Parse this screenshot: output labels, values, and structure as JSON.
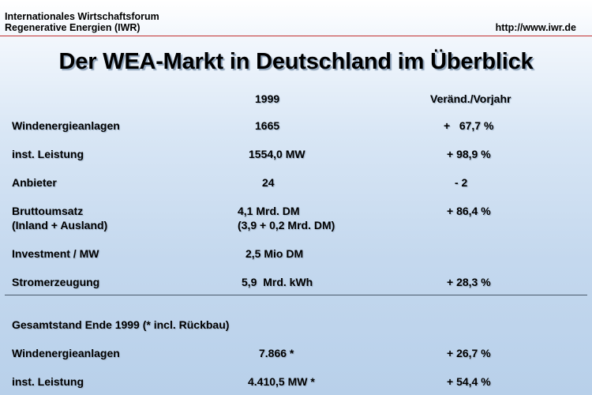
{
  "header": {
    "org_line1": "Internationales Wirtschaftsforum",
    "org_line2": "Regenerative Energien (IWR)",
    "url": "http://www.iwr.de"
  },
  "title": "Der WEA-Markt in Deutschland im Überblick",
  "columns": {
    "year": "1999",
    "change": "Veränd./Vorjahr"
  },
  "rows": [
    {
      "label": "Windenergieanlagen",
      "value": "1665",
      "change": "+   67,7 %"
    },
    {
      "label": "inst. Leistung",
      "value": "1554,0 MW",
      "change": "+ 98,9 %"
    },
    {
      "label": "Anbieter",
      "value": "24",
      "change": "- 2"
    },
    {
      "label": "Bruttoumsatz",
      "label2": "(Inland + Ausland)",
      "value": "4,1 Mrd. DM",
      "value2": "(3,9 + 0,2 Mrd. DM)",
      "change": "+ 86,4 %"
    },
    {
      "label": "Investment / MW",
      "value": "2,5 Mio DM",
      "change": ""
    },
    {
      "label": "Stromerzeugung",
      "value": "5,9  Mrd. kWh",
      "change": "+ 28,3 %"
    }
  ],
  "total": {
    "heading": "Gesamtstand Ende 1999 (* incl. Rückbau)",
    "rows": [
      {
        "label": "Windenergieanlagen",
        "value": "7.866 *",
        "change": "+ 26,7 %"
      },
      {
        "label": "inst. Leistung",
        "value": "4.410,5 MW *",
        "change": "+ 54,4 %"
      }
    ]
  }
}
